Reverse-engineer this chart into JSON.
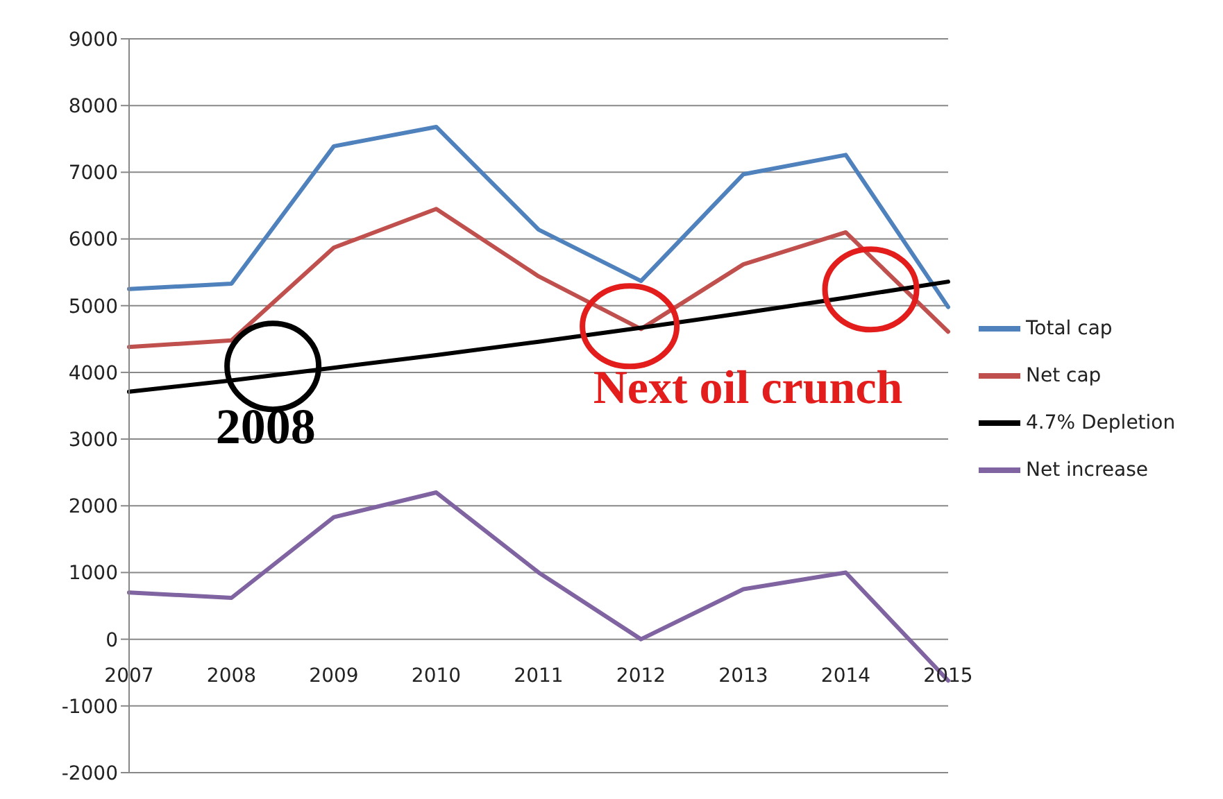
{
  "chart_data": {
    "type": "line",
    "categories": [
      "2007",
      "2008",
      "2009",
      "2010",
      "2011",
      "2012",
      "2013",
      "2014",
      "2015"
    ],
    "series": [
      {
        "name": "Total cap",
        "color": "#4f81bd",
        "values": [
          5250,
          5330,
          7390,
          7680,
          6140,
          5370,
          6970,
          7260,
          4980
        ]
      },
      {
        "name": "Net cap",
        "color": "#c0504d",
        "values": [
          4380,
          4480,
          5870,
          6450,
          5440,
          4650,
          5620,
          6100,
          4610
        ]
      },
      {
        "name": "4.7% Depletion",
        "color": "#000000",
        "values": [
          3710,
          3880,
          4070,
          4260,
          4460,
          4670,
          4890,
          5120,
          5360
        ]
      },
      {
        "name": "Net increase",
        "color": "#8064a2",
        "values": [
          700,
          620,
          1830,
          2200,
          1000,
          0,
          750,
          1000,
          -620
        ]
      }
    ],
    "ylim": [
      -2000,
      9000
    ],
    "yticks": [
      -2000,
      -1000,
      0,
      1000,
      2000,
      3000,
      4000,
      5000,
      6000,
      7000,
      8000,
      9000
    ],
    "grid": "y",
    "legend": "right",
    "marker": "none",
    "line_style": "solid",
    "annotations": [
      "2008",
      "Next oil crunch"
    ]
  }
}
